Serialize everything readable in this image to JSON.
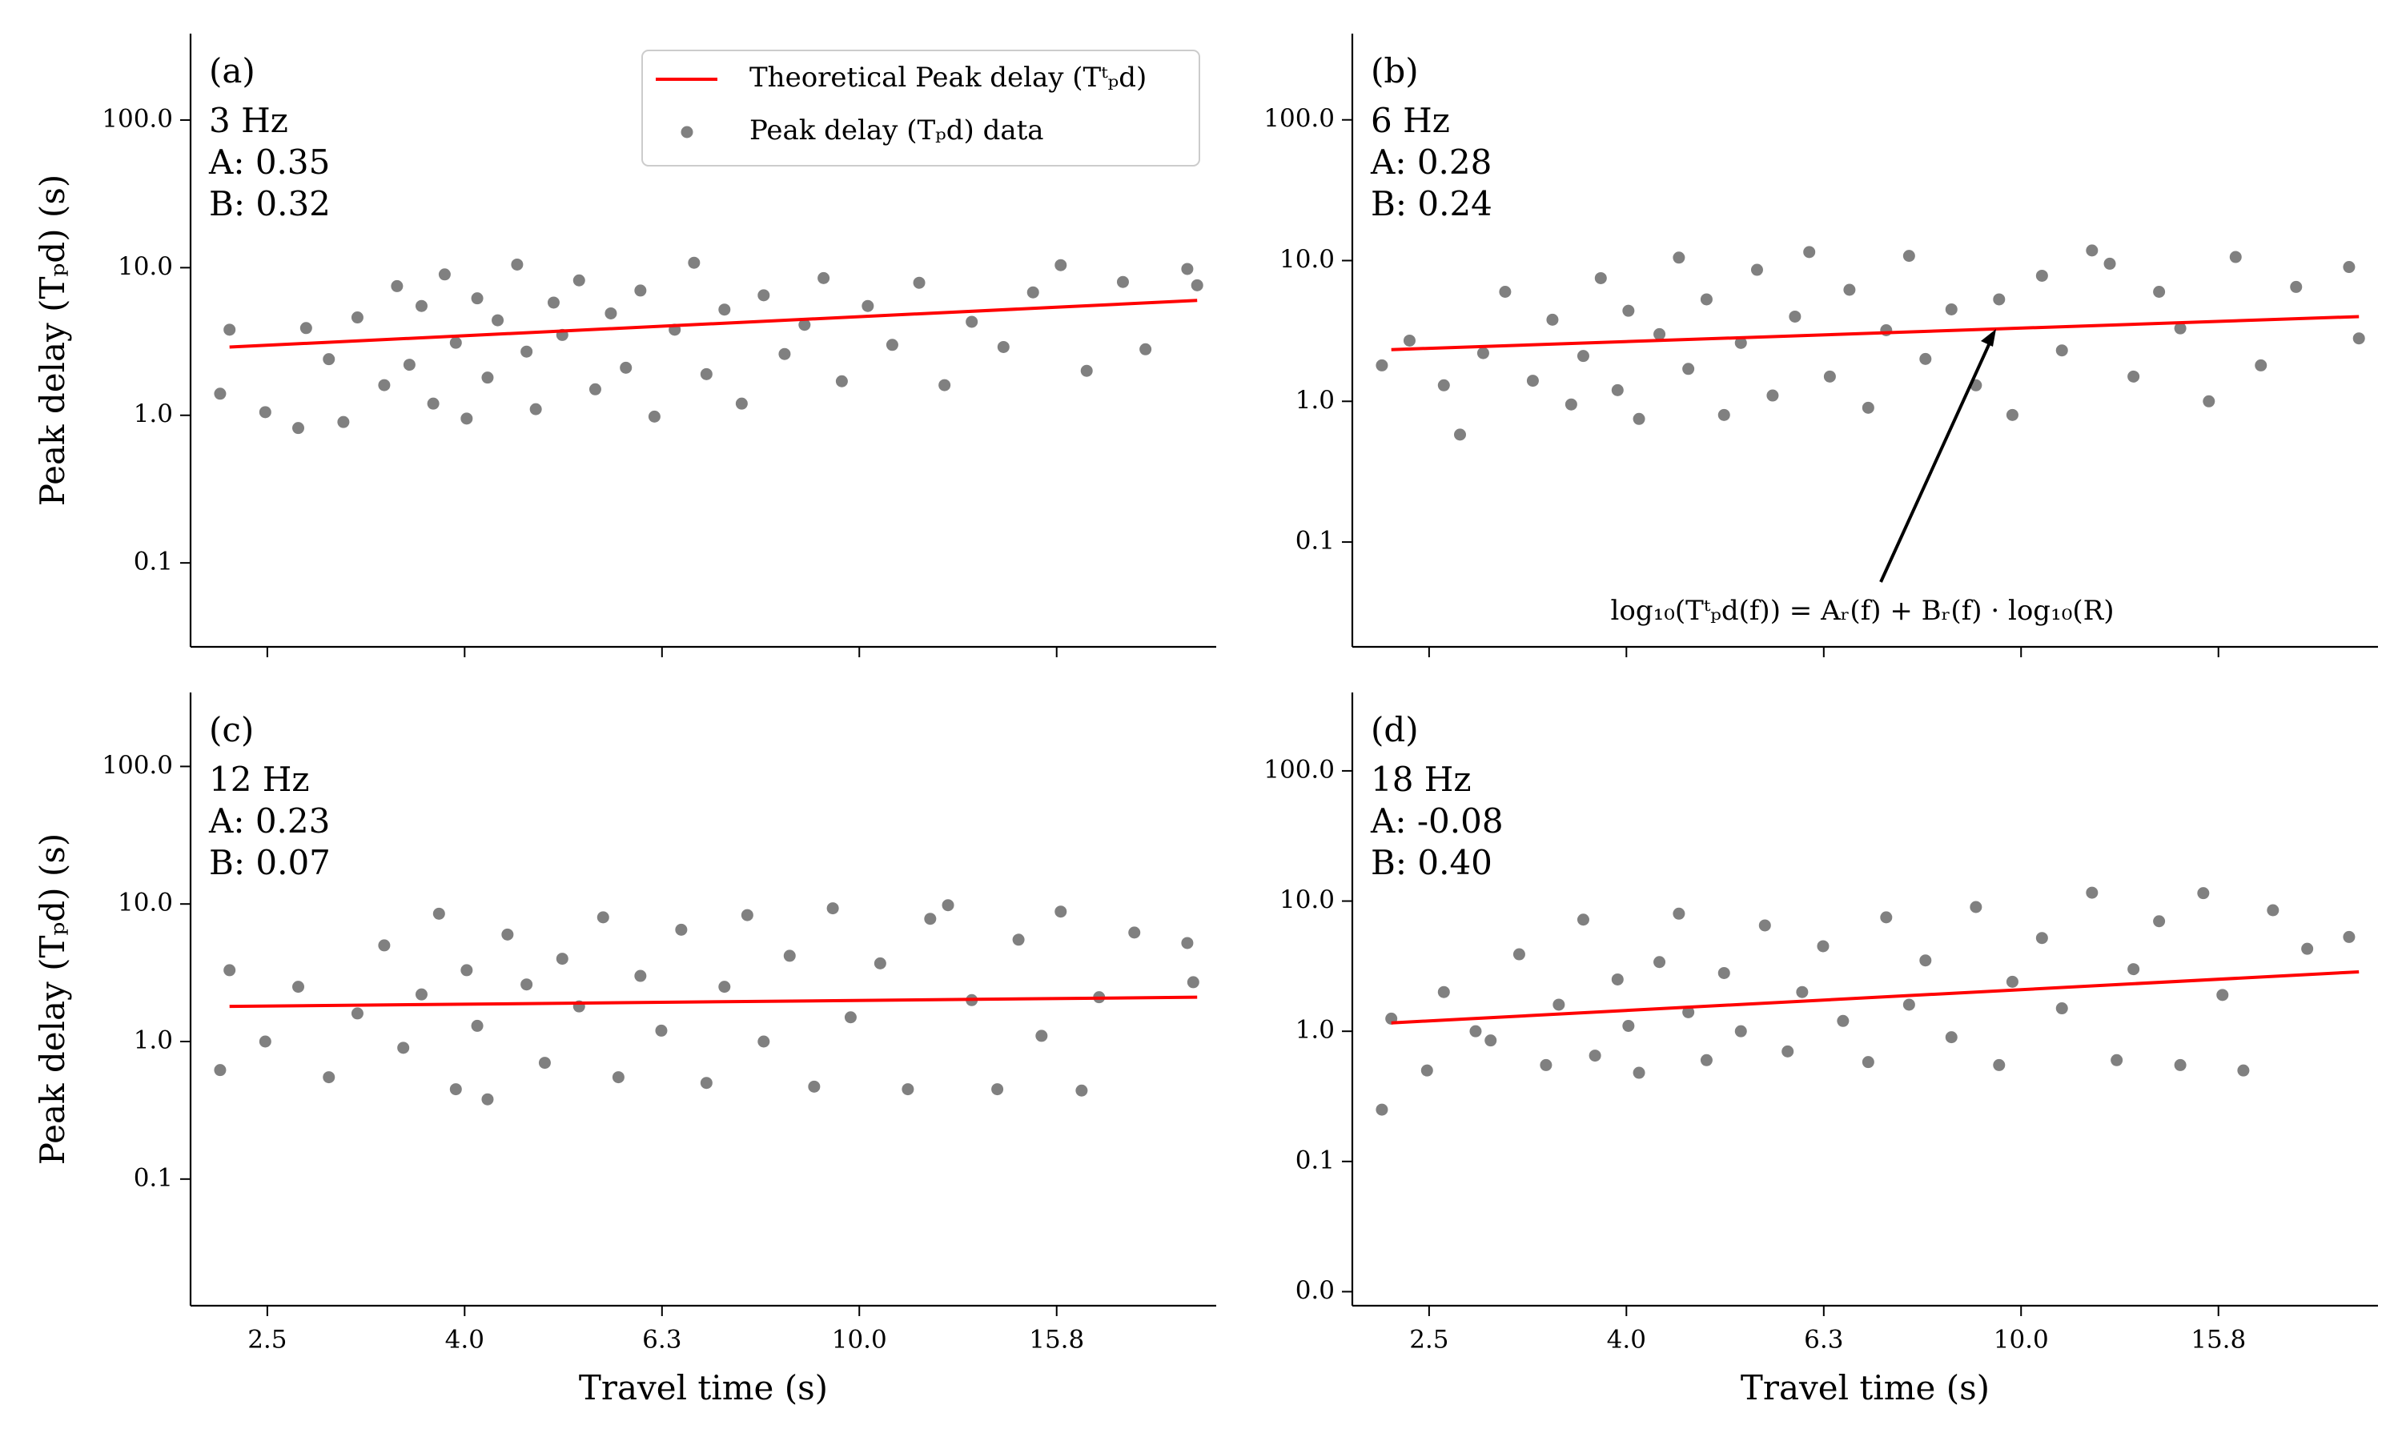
{
  "chart_data": [
    {
      "type": "scatter",
      "label": "(a)",
      "annotations": [
        "3 Hz",
        "A: 0.35",
        "B: 0.32"
      ],
      "ylabel": "Peak delay (Tₚd) (s)",
      "xlog": true,
      "ylog": true,
      "legend": "upper right",
      "xlim": [
        2.1,
        23
      ],
      "ylim": [
        0.027,
        385
      ],
      "xticks": [
        2.512,
        3.981,
        6.31,
        10,
        15.85
      ],
      "yticks": [
        0.1,
        {
          "value": 1,
          "label": "1.0"
        },
        {
          "value": 10,
          "label": "10.0"
        },
        {
          "value": 100,
          "label": "100.0"
        }
      ],
      "series": [
        {
          "name": "Theoretical Peak delay (Tᵗₚd)",
          "type": "line",
          "color": "#ff0000",
          "x": [
            2.3,
            22
          ],
          "values": [
            2.9,
            6.0
          ]
        },
        {
          "name": "Peak delay (Tₚd) data",
          "type": "scatter",
          "color": "#808080",
          "x": [
            2.25,
            2.3,
            2.5,
            2.7,
            2.75,
            2.9,
            3.0,
            3.1,
            3.3,
            3.4,
            3.5,
            3.6,
            3.7,
            3.8,
            3.9,
            4.0,
            4.1,
            4.2,
            4.3,
            4.5,
            4.6,
            4.7,
            4.9,
            5.0,
            5.2,
            5.4,
            5.6,
            5.8,
            6.0,
            6.2,
            6.5,
            6.8,
            7.0,
            7.3,
            7.6,
            8.0,
            8.4,
            8.8,
            9.2,
            9.6,
            10.2,
            10.8,
            11.5,
            12.2,
            13.0,
            14.0,
            15.0,
            16.0,
            17.0,
            18.5,
            19.5,
            21.5,
            22.0
          ],
          "values": [
            1.4,
            3.8,
            1.05,
            0.82,
            3.9,
            2.4,
            0.9,
            4.6,
            1.6,
            7.5,
            2.2,
            5.5,
            1.2,
            9.0,
            3.1,
            0.95,
            6.2,
            1.8,
            4.4,
            10.5,
            2.7,
            1.1,
            5.8,
            3.5,
            8.2,
            1.5,
            4.9,
            2.1,
            7.0,
            0.98,
            3.8,
            10.8,
            1.9,
            5.2,
            1.2,
            6.5,
            2.6,
            4.1,
            8.5,
            1.7,
            5.5,
            3.0,
            7.9,
            1.6,
            4.3,
            2.9,
            6.8,
            10.4,
            2.0,
            8.0,
            2.8,
            9.8,
            7.6
          ]
        }
      ]
    },
    {
      "type": "scatter",
      "label": "(b)",
      "annotations": [
        "6 Hz",
        "A: 0.28",
        "B: 0.24"
      ],
      "equation": "log₁₀(Tᵗₚd(f)) = Aᵣ(f) + Bᵣ(f) · log₁₀(R)",
      "xlog": true,
      "ylog": true,
      "xlim": [
        2.1,
        23
      ],
      "ylim": [
        0.018,
        410
      ],
      "xticks": [
        2.512,
        3.981,
        6.31,
        10,
        15.85
      ],
      "yticks": [
        0.1,
        {
          "value": 1,
          "label": "1.0"
        },
        {
          "value": 10,
          "label": "10.0"
        },
        {
          "value": 100,
          "label": "100.0"
        }
      ],
      "series": [
        {
          "type": "line",
          "color": "#ff0000",
          "x": [
            2.3,
            22
          ],
          "values": [
            2.33,
            4.0
          ]
        },
        {
          "type": "scatter",
          "color": "#808080",
          "x": [
            2.25,
            2.4,
            2.6,
            2.7,
            2.85,
            3.0,
            3.2,
            3.35,
            3.5,
            3.6,
            3.75,
            3.9,
            4.0,
            4.1,
            4.3,
            4.5,
            4.6,
            4.8,
            5.0,
            5.2,
            5.4,
            5.6,
            5.9,
            6.1,
            6.4,
            6.7,
            7.0,
            7.3,
            7.7,
            8.0,
            8.5,
            9.0,
            9.5,
            9.8,
            10.5,
            11.0,
            11.8,
            12.3,
            13.0,
            13.8,
            14.5,
            15.5,
            16.5,
            17.5,
            19.0,
            21.5,
            22.0
          ],
          "values": [
            1.8,
            2.7,
            1.3,
            0.58,
            2.2,
            6.0,
            1.4,
            3.8,
            0.95,
            2.1,
            7.5,
            1.2,
            4.4,
            0.75,
            3.0,
            10.5,
            1.7,
            5.3,
            0.8,
            2.6,
            8.6,
            1.1,
            4.0,
            11.5,
            1.5,
            6.2,
            0.9,
            3.2,
            10.8,
            2.0,
            4.5,
            1.3,
            5.3,
            0.8,
            7.8,
            2.3,
            11.8,
            9.5,
            1.5,
            6.0,
            3.3,
            1.0,
            10.6,
            1.8,
            6.5,
            9.0,
            2.8
          ]
        }
      ]
    },
    {
      "type": "scatter",
      "label": "(c)",
      "annotations": [
        "12 Hz",
        "A: 0.23",
        "B: 0.07"
      ],
      "ylabel": "Peak delay (Tₚd) (s)",
      "xlabel": "Travel time (s)",
      "xlog": true,
      "ylog": true,
      "xlim": [
        2.1,
        23
      ],
      "ylim": [
        0.012,
        345
      ],
      "xticks": [
        {
          "value": 2.512,
          "label": "2.5"
        },
        {
          "value": 3.981,
          "label": "4.0"
        },
        {
          "value": 6.31,
          "label": "6.3"
        },
        {
          "value": 10,
          "label": "10.0"
        },
        {
          "value": 15.85,
          "label": "15.8"
        }
      ],
      "yticks": [
        0.1,
        {
          "value": 1,
          "label": "1.0"
        },
        {
          "value": 10,
          "label": "10.0"
        },
        {
          "value": 100,
          "label": "100.0"
        }
      ],
      "series": [
        {
          "type": "line",
          "color": "#ff0000",
          "x": [
            2.3,
            22
          ],
          "values": [
            1.8,
            2.1
          ]
        },
        {
          "type": "scatter",
          "color": "#808080",
          "x": [
            2.25,
            2.3,
            2.5,
            2.7,
            2.9,
            3.1,
            3.3,
            3.45,
            3.6,
            3.75,
            3.9,
            4.0,
            4.1,
            4.2,
            4.4,
            4.6,
            4.8,
            5.0,
            5.2,
            5.5,
            5.7,
            6.0,
            6.3,
            6.6,
            7.0,
            7.3,
            7.7,
            8.0,
            8.5,
            9.0,
            9.4,
            9.8,
            10.5,
            11.2,
            11.8,
            12.3,
            13.0,
            13.8,
            14.5,
            15.3,
            16.0,
            16.8,
            17.5,
            19.0,
            21.5,
            21.8
          ],
          "values": [
            0.62,
            3.3,
            1.0,
            2.5,
            0.55,
            1.6,
            5.0,
            0.9,
            2.2,
            8.5,
            0.45,
            3.3,
            1.3,
            0.38,
            6.0,
            2.6,
            0.7,
            4.0,
            1.8,
            8.0,
            0.55,
            3.0,
            1.2,
            6.5,
            0.5,
            2.5,
            8.3,
            1.0,
            4.2,
            0.47,
            9.3,
            1.5,
            3.7,
            0.45,
            7.8,
            9.8,
            2.0,
            0.45,
            5.5,
            1.1,
            8.8,
            0.44,
            2.1,
            6.2,
            5.2,
            2.7
          ]
        }
      ]
    },
    {
      "type": "scatter",
      "label": "(d)",
      "annotations": [
        "18 Hz",
        "A: -0.08",
        "B: 0.40"
      ],
      "xlabel": "Travel time (s)",
      "xlog": true,
      "ylog": true,
      "xlim": [
        2.1,
        23
      ],
      "ylim": [
        0.0078,
        400
      ],
      "xticks": [
        {
          "value": 2.512,
          "label": "2.5"
        },
        {
          "value": 3.981,
          "label": "4.0"
        },
        {
          "value": 6.31,
          "label": "6.3"
        },
        {
          "value": 10,
          "label": "10.0"
        },
        {
          "value": 15.85,
          "label": "15.8"
        }
      ],
      "yticks": [
        {
          "value": 0.01,
          "label": "0.0"
        },
        0.1,
        {
          "value": 1,
          "label": "1.0"
        },
        {
          "value": 10,
          "label": "10.0"
        },
        {
          "value": 100,
          "label": "100.0"
        }
      ],
      "series": [
        {
          "type": "line",
          "color": "#ff0000",
          "x": [
            2.3,
            22
          ],
          "values": [
            1.16,
            2.86
          ]
        },
        {
          "type": "scatter",
          "color": "#808080",
          "x": [
            2.25,
            2.3,
            2.5,
            2.6,
            2.8,
            2.9,
            3.1,
            3.3,
            3.4,
            3.6,
            3.7,
            3.9,
            4.0,
            4.1,
            4.3,
            4.5,
            4.6,
            4.8,
            5.0,
            5.2,
            5.5,
            5.8,
            6.0,
            6.3,
            6.6,
            7.0,
            7.3,
            7.7,
            8.0,
            8.5,
            9.0,
            9.5,
            9.8,
            10.5,
            11.0,
            11.8,
            12.5,
            13.0,
            13.8,
            14.5,
            15.3,
            16.0,
            16.8,
            18.0,
            19.5,
            21.5
          ],
          "values": [
            0.25,
            1.25,
            0.5,
            2.0,
            1.0,
            0.85,
            3.9,
            0.55,
            1.6,
            7.2,
            0.65,
            2.5,
            1.1,
            0.48,
            3.4,
            8.0,
            1.4,
            0.6,
            2.8,
            1.0,
            6.5,
            0.7,
            2.0,
            4.5,
            1.2,
            0.58,
            7.5,
            1.6,
            3.5,
            0.9,
            9.0,
            0.55,
            2.4,
            5.2,
            1.5,
            11.6,
            0.6,
            3.0,
            7.0,
            0.55,
            11.5,
            1.9,
            0.5,
            8.5,
            4.3,
            5.3
          ]
        }
      ]
    }
  ]
}
